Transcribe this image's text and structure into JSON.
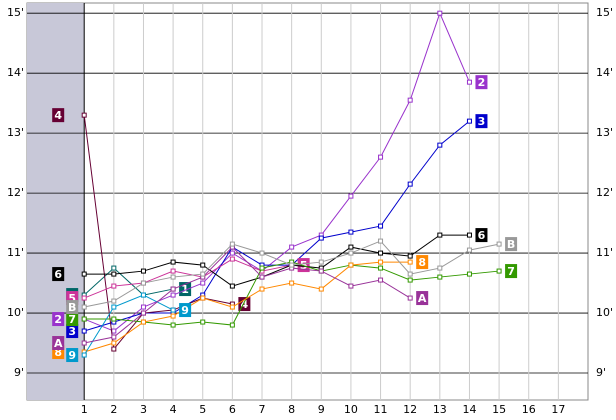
{
  "chart_data": {
    "type": "line",
    "x": [
      1,
      2,
      3,
      4,
      5,
      6,
      7,
      8,
      9,
      10,
      11,
      12,
      13,
      14,
      15
    ],
    "xlim": [
      -0.93,
      18
    ],
    "xticks": [
      1,
      2,
      3,
      4,
      5,
      6,
      7,
      8,
      9,
      10,
      11,
      12,
      13,
      14,
      15,
      16,
      17
    ],
    "ylim": [
      8.55,
      15.17
    ],
    "yticks": [
      {
        "value": 9,
        "label": "9'"
      },
      {
        "value": 10,
        "label": "10'"
      },
      {
        "value": 11,
        "label": "11'"
      },
      {
        "value": 12,
        "label": "12'"
      },
      {
        "value": 13,
        "label": "13'"
      },
      {
        "value": 14,
        "label": "14'"
      },
      {
        "value": 15,
        "label": "15'"
      }
    ],
    "grid": true,
    "series": [
      {
        "name": "1",
        "color": "#006666",
        "values": [
          10.3,
          10.75,
          10.3,
          10.4,
          null,
          null,
          null,
          null,
          null,
          null,
          null,
          null,
          null,
          null,
          null
        ]
      },
      {
        "name": "2",
        "color": "#9933cc",
        "values": [
          9.9,
          9.7,
          10.1,
          10.3,
          10.5,
          11.0,
          10.7,
          11.1,
          11.3,
          11.95,
          12.6,
          13.55,
          15.0,
          13.85,
          null
        ]
      },
      {
        "name": "3",
        "color": "#0000cc",
        "values": [
          9.7,
          9.85,
          10.0,
          10.0,
          10.3,
          11.1,
          10.8,
          10.8,
          11.25,
          11.35,
          11.45,
          12.15,
          12.8,
          13.2,
          null
        ]
      },
      {
        "name": "4",
        "color": "#660033",
        "values": [
          13.3,
          9.4,
          10.0,
          10.05,
          10.25,
          10.15,
          null,
          null,
          null,
          null,
          null,
          null,
          null,
          null,
          null
        ]
      },
      {
        "name": "5",
        "color": "#cc3399",
        "values": [
          10.25,
          10.45,
          10.5,
          10.7,
          10.6,
          10.9,
          10.7,
          10.8,
          null,
          null,
          null,
          null,
          null,
          null,
          null
        ]
      },
      {
        "name": "6",
        "color": "#000000",
        "values": [
          10.65,
          10.65,
          10.7,
          10.85,
          10.8,
          10.45,
          10.6,
          10.8,
          10.75,
          11.1,
          11.0,
          10.95,
          11.3,
          11.3,
          null
        ]
      },
      {
        "name": "7",
        "color": "#339900",
        "values": [
          9.9,
          9.9,
          9.85,
          9.8,
          9.85,
          9.8,
          10.75,
          10.85,
          10.7,
          10.8,
          10.75,
          10.55,
          10.6,
          10.65,
          10.7
        ]
      },
      {
        "name": "8",
        "color": "#ff8800",
        "values": [
          9.35,
          9.5,
          9.85,
          9.95,
          10.25,
          10.1,
          10.4,
          10.5,
          10.4,
          10.8,
          10.85,
          10.85,
          null,
          null,
          null
        ]
      },
      {
        "name": "9",
        "color": "#0099cc",
        "values": [
          9.3,
          10.1,
          10.3,
          10.05,
          null,
          null,
          null,
          null,
          null,
          null,
          null,
          null,
          null,
          null,
          null
        ]
      },
      {
        "name": "A",
        "color": "#993399",
        "values": [
          9.5,
          9.6,
          10.0,
          10.4,
          10.6,
          11.1,
          10.6,
          10.75,
          10.7,
          10.45,
          10.55,
          10.25,
          null,
          null,
          null
        ]
      },
      {
        "name": "B",
        "color": "#999999",
        "values": [
          10.1,
          10.2,
          10.5,
          10.6,
          10.65,
          11.15,
          11.0,
          10.8,
          10.85,
          11.0,
          11.2,
          10.65,
          10.75,
          11.05,
          11.15
        ]
      }
    ]
  }
}
